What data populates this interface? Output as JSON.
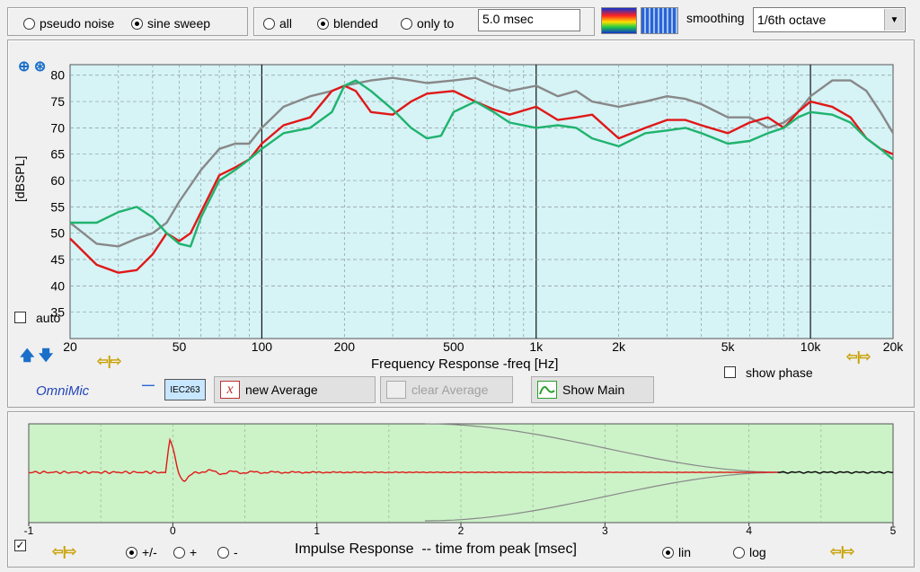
{
  "toolbar": {
    "signal_options": [
      "pseudo noise",
      "sine sweep"
    ],
    "signal_selected": 1,
    "window_options": [
      "all",
      "blended",
      "only to"
    ],
    "window_selected": 1,
    "window_time": "5.0 msec",
    "smoothing_label": "smoothing",
    "smoothing_value": "1/6th octave"
  },
  "fr_plot": {
    "ylabel": "[dBSPL]",
    "xlabel": "Frequency Response -freq [Hz]",
    "auto_label": "auto",
    "show_phase_label": "show phase"
  },
  "chart_data": [
    {
      "type": "line",
      "title": "",
      "xlabel": "Frequency Response -freq [Hz]",
      "ylabel": "[dBSPL]",
      "x_scale": "log",
      "xlim": [
        20,
        20000
      ],
      "ylim": [
        30,
        82
      ],
      "xticks": [
        {
          "v": 20,
          "t": "20"
        },
        {
          "v": 50,
          "t": "50"
        },
        {
          "v": 100,
          "t": "100"
        },
        {
          "v": 200,
          "t": "200"
        },
        {
          "v": 500,
          "t": "500"
        },
        {
          "v": 1000,
          "t": "1k"
        },
        {
          "v": 2000,
          "t": "2k"
        },
        {
          "v": 5000,
          "t": "5k"
        },
        {
          "v": 10000,
          "t": "10k"
        },
        {
          "v": 20000,
          "t": "20k"
        }
      ],
      "yticks": [
        35,
        40,
        45,
        50,
        55,
        60,
        65,
        70,
        75,
        80
      ],
      "grid": true,
      "series": [
        {
          "color": "#888888",
          "x": [
            20,
            25,
            30,
            35,
            40,
            45,
            50,
            60,
            70,
            80,
            90,
            100,
            120,
            150,
            180,
            200,
            250,
            300,
            350,
            400,
            500,
            600,
            700,
            800,
            1000,
            1200,
            1400,
            1600,
            2000,
            2500,
            3000,
            3500,
            4000,
            5000,
            6000,
            7000,
            8000,
            9000,
            10000,
            12000,
            14000,
            16000,
            18000,
            20000
          ],
          "y": [
            52,
            48,
            47.5,
            49,
            50,
            52,
            56,
            62,
            66,
            67,
            67,
            70,
            74,
            76,
            77,
            78,
            79,
            79.5,
            79,
            78.5,
            79,
            79.5,
            78,
            77,
            78,
            76,
            77,
            75,
            74,
            75,
            76,
            75.5,
            74.5,
            72,
            72,
            70,
            71,
            73,
            76,
            79,
            79,
            77,
            73,
            69
          ]
        },
        {
          "color": "#e01818",
          "x": [
            20,
            25,
            30,
            35,
            40,
            45,
            50,
            55,
            60,
            70,
            80,
            90,
            100,
            120,
            150,
            180,
            200,
            220,
            250,
            300,
            350,
            400,
            500,
            600,
            700,
            800,
            1000,
            1200,
            1400,
            1600,
            2000,
            2500,
            3000,
            3500,
            4000,
            5000,
            6000,
            7000,
            8000,
            9000,
            10000,
            12000,
            14000,
            16000,
            18000,
            20000
          ],
          "y": [
            49,
            44,
            42.5,
            43,
            46,
            50,
            48.5,
            50,
            54,
            61,
            62.5,
            64,
            67,
            70.5,
            72,
            77,
            78,
            77,
            73,
            72.5,
            75,
            76.5,
            77,
            75,
            73.5,
            72.5,
            74,
            71.5,
            72,
            72.5,
            68,
            70,
            71.5,
            71.5,
            70.5,
            69,
            71,
            72,
            70,
            73,
            75,
            74,
            72,
            68,
            66,
            65
          ]
        },
        {
          "color": "#1fb36e",
          "x": [
            20,
            25,
            30,
            35,
            40,
            45,
            50,
            55,
            60,
            70,
            80,
            90,
            100,
            120,
            150,
            180,
            200,
            220,
            250,
            300,
            350,
            400,
            450,
            500,
            600,
            700,
            800,
            1000,
            1200,
            1400,
            1600,
            2000,
            2500,
            3000,
            3500,
            4000,
            5000,
            6000,
            7000,
            8000,
            9000,
            10000,
            12000,
            14000,
            16000,
            18000,
            20000
          ],
          "y": [
            52,
            52,
            54,
            55,
            53,
            50,
            48,
            47.5,
            53,
            60,
            62,
            64,
            66,
            69,
            70,
            73,
            78,
            79,
            77,
            73.5,
            70,
            68,
            68.5,
            73,
            75,
            73,
            71,
            70,
            70.5,
            70,
            68,
            66.5,
            69,
            69.5,
            70,
            69,
            67,
            67.5,
            69,
            70,
            72,
            73,
            72.5,
            71,
            68,
            66,
            64
          ]
        }
      ]
    },
    {
      "type": "line",
      "title": "",
      "xlabel": "Impulse Response  -- time from peak [msec]",
      "ylabel": "",
      "xlim": [
        -1,
        5
      ],
      "xticks": [
        -1,
        0,
        1,
        2,
        3,
        4,
        5
      ],
      "grid": true,
      "series": [
        {
          "color": "#e01818"
        },
        {
          "color": "#000000"
        },
        {
          "color": "#888888"
        }
      ]
    }
  ],
  "buttons": {
    "omnimic": "OmniMic",
    "iec": "IEC263",
    "new_average": "new Average",
    "clear_average": "clear Average",
    "show_main": "Show Main"
  },
  "ir_plot": {
    "xlabel": "Impulse Response  -- time from peak [msec]",
    "scale_options": [
      "+/-",
      "+",
      "-"
    ],
    "scale_selected": 0,
    "axis_options": [
      "lin",
      "log"
    ],
    "axis_selected": 0
  },
  "colors": {
    "fr_bg": "#d6f3f6",
    "ir_bg": "#ccf2c8",
    "gray": "#888888",
    "red": "#e01818",
    "green": "#1fb36e"
  }
}
